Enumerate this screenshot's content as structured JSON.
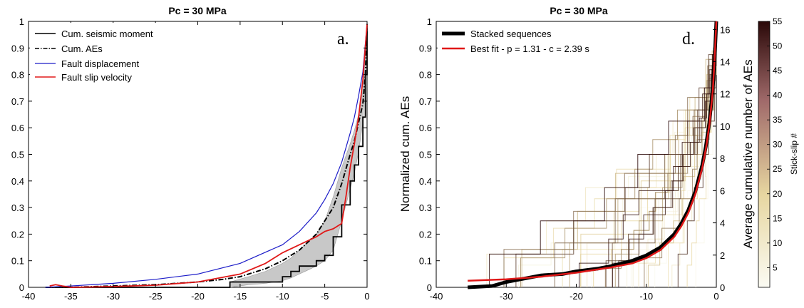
{
  "chart_data": [
    {
      "type": "line",
      "title": "Pc = 30 MPa",
      "panel_label": "a.",
      "xlabel": "",
      "ylabel": "",
      "xlim": [
        -40,
        0
      ],
      "ylim": [
        0,
        1
      ],
      "x_ticks": [
        -40,
        -35,
        -30,
        -25,
        -20,
        -15,
        -10,
        -5,
        0
      ],
      "y_ticks": [
        0,
        0.1,
        0.2,
        0.3,
        0.4,
        0.5,
        0.6,
        0.7,
        0.8,
        0.9,
        1
      ],
      "x_tick_labels": [
        "-40",
        "-35",
        "-30",
        "-25",
        "-20",
        "-15",
        "-10",
        "-5",
        "0"
      ],
      "y_tick_labels": [
        "0",
        "0.1",
        "0.2",
        "0.3",
        "0.4",
        "0.5",
        "0.6",
        "0.7",
        "0.8",
        "0.9",
        "1"
      ],
      "legend_position": "top-left",
      "series": [
        {
          "name": "Cum. seismic moment",
          "color": "#000000",
          "style": "solid",
          "step": true,
          "x": [
            -37.5,
            -35,
            -30,
            -20,
            -16.2,
            -16.2,
            -12,
            -10,
            -9,
            -8,
            -6,
            -5,
            -4,
            -3,
            -2,
            -1.5,
            -1,
            -0.5,
            -0.2,
            0
          ],
          "y": [
            0,
            0,
            0,
            0,
            0,
            0.02,
            0.02,
            0.04,
            0.06,
            0.08,
            0.1,
            0.12,
            0.19,
            0.31,
            0.4,
            0.46,
            0.53,
            0.64,
            0.8,
            0.99
          ]
        },
        {
          "name": "Cum. AEs",
          "color": "#000000",
          "style": "dashdot",
          "x": [
            -38,
            -35,
            -30,
            -25,
            -20,
            -17,
            -15,
            -12,
            -10,
            -8,
            -6,
            -5,
            -4,
            -3,
            -2,
            -1.5,
            -1,
            -0.5,
            -0.2,
            0
          ],
          "y": [
            0,
            0,
            0.005,
            0.01,
            0.02,
            0.03,
            0.04,
            0.07,
            0.1,
            0.14,
            0.2,
            0.25,
            0.3,
            0.39,
            0.5,
            0.55,
            0.62,
            0.69,
            0.8,
            0.98
          ]
        },
        {
          "name": "Fault displacement",
          "color": "#1c1cc8",
          "style": "solid",
          "x": [
            -38,
            -35,
            -30,
            -25,
            -20,
            -15,
            -10,
            -8,
            -6,
            -5,
            -4,
            -3,
            -2,
            -1.5,
            -1,
            -0.5,
            0
          ],
          "y": [
            0,
            0.005,
            0.015,
            0.03,
            0.05,
            0.09,
            0.16,
            0.21,
            0.28,
            0.33,
            0.39,
            0.47,
            0.58,
            0.64,
            0.72,
            0.81,
            0.99
          ]
        },
        {
          "name": "Fault slip velocity",
          "color": "#e01818",
          "style": "solid",
          "x": [
            -37.5,
            -36.8,
            -36,
            -35,
            -30,
            -25,
            -20,
            -15,
            -12,
            -10,
            -8,
            -6,
            -5,
            -4,
            -3,
            -2.5,
            -2,
            -1.5,
            -1,
            -0.5,
            0
          ],
          "y": [
            0.005,
            0.01,
            0.005,
            0.0,
            0.003,
            0.008,
            0.02,
            0.05,
            0.09,
            0.13,
            0.16,
            0.19,
            0.21,
            0.22,
            0.24,
            0.34,
            0.45,
            0.54,
            0.64,
            0.78,
            0.99
          ]
        }
      ],
      "band": {
        "color": "#c8c8c8",
        "x": [
          -16.2,
          -14,
          -12,
          -10,
          -9,
          -8,
          -7,
          -6,
          -5,
          -4,
          -3,
          -2,
          -1.5,
          -1,
          -0.5,
          0
        ],
        "y_low": [
          0.0,
          0.01,
          0.015,
          0.025,
          0.035,
          0.05,
          0.065,
          0.08,
          0.1,
          0.14,
          0.25,
          0.37,
          0.43,
          0.51,
          0.62,
          0.97
        ],
        "y_high": [
          0.02,
          0.04,
          0.06,
          0.09,
          0.11,
          0.14,
          0.17,
          0.2,
          0.25,
          0.34,
          0.45,
          0.54,
          0.59,
          0.65,
          0.74,
          1.0
        ]
      }
    },
    {
      "type": "line",
      "title": "Pc = 30 MPa",
      "panel_label": "d.",
      "xlabel": "",
      "ylabel": "Normalized cum. AEs",
      "ylabel_right": "Average cumulative number of AEs",
      "xlim": [
        -40,
        0
      ],
      "ylim": [
        0,
        1
      ],
      "y_right_lim": [
        0,
        16.5
      ],
      "x_ticks": [
        -40,
        -30,
        -20,
        -10,
        0
      ],
      "x_tick_labels": [
        "-40",
        "-30",
        "-20",
        "-10",
        "0"
      ],
      "y_ticks": [
        0,
        0.1,
        0.2,
        0.3,
        0.4,
        0.5,
        0.6,
        0.7,
        0.8,
        0.9,
        1
      ],
      "y_tick_labels": [
        "0",
        "0.1",
        "0.2",
        "0.3",
        "0.4",
        "0.5",
        "0.6",
        "0.7",
        "0.8",
        "0.9",
        "1"
      ],
      "y_right_ticks": [
        0,
        2,
        4,
        6,
        8,
        10,
        12,
        14,
        16
      ],
      "y_right_tick_labels": [
        "0",
        "2",
        "4",
        "6",
        "8",
        "10",
        "12",
        "14",
        "16"
      ],
      "legend_position": "top-left",
      "series": [
        {
          "name": "Stacked sequences",
          "color": "#000000",
          "style": "solid",
          "width": 5,
          "x": [
            -35.5,
            -32,
            -30,
            -27,
            -25,
            -22,
            -20,
            -17,
            -15,
            -12,
            -10,
            -8,
            -6,
            -5,
            -4,
            -3,
            -2,
            -1.5,
            -1,
            -0.5,
            -0.2,
            0
          ],
          "y": [
            0.0,
            0.005,
            0.02,
            0.035,
            0.045,
            0.05,
            0.06,
            0.07,
            0.08,
            0.1,
            0.12,
            0.15,
            0.2,
            0.24,
            0.29,
            0.36,
            0.46,
            0.53,
            0.62,
            0.75,
            0.88,
            1.0
          ]
        },
        {
          "name": "Best fit - p = 1.31 - c = 2.39 s",
          "color": "#e01818",
          "style": "solid",
          "width": 2.5,
          "x": [
            -35.5,
            -30,
            -25,
            -20,
            -15,
            -12,
            -10,
            -8,
            -6,
            -5,
            -4,
            -3,
            -2,
            -1.5,
            -1,
            -0.5,
            -0.2,
            0
          ],
          "y": [
            0.025,
            0.03,
            0.04,
            0.055,
            0.075,
            0.09,
            0.11,
            0.14,
            0.19,
            0.23,
            0.28,
            0.35,
            0.45,
            0.52,
            0.61,
            0.74,
            0.88,
            1.0
          ]
        }
      ],
      "colorbar": {
        "label": "Stick-slip #",
        "min": 1,
        "max": 55,
        "ticks": [
          5,
          10,
          15,
          20,
          25,
          30,
          35,
          40,
          45,
          50,
          55
        ],
        "tick_labels": [
          "5",
          "10",
          "15",
          "20",
          "25",
          "30",
          "35",
          "40",
          "45",
          "50",
          "55"
        ],
        "color_low": "#fbfbf3",
        "color_mid": "#e7d6a0",
        "color_high": "#2a0808"
      }
    }
  ]
}
